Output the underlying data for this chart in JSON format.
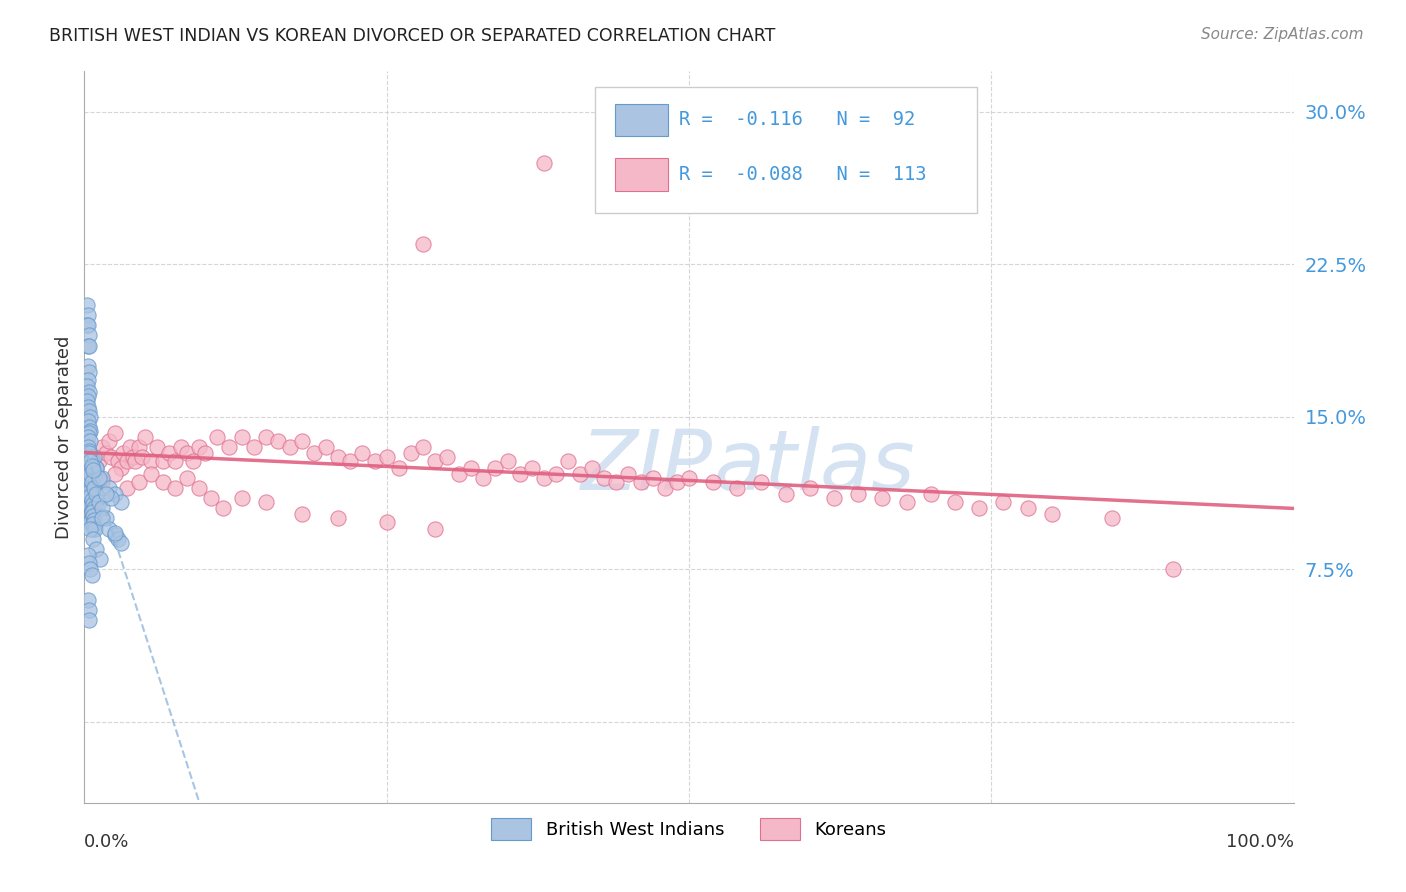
{
  "title": "BRITISH WEST INDIAN VS KOREAN DIVORCED OR SEPARATED CORRELATION CHART",
  "source": "Source: ZipAtlas.com",
  "ylabel": "Divorced or Separated",
  "yticks": [
    0.0,
    0.075,
    0.15,
    0.225,
    0.3
  ],
  "ytick_labels": [
    "",
    "7.5%",
    "15.0%",
    "22.5%",
    "30.0%"
  ],
  "xlim": [
    0.0,
    1.0
  ],
  "ylim": [
    -0.04,
    0.32
  ],
  "legend_r_bwi": "-0.116",
  "legend_n_bwi": "92",
  "legend_r_kor": "-0.088",
  "legend_n_kor": "113",
  "bwi_color": "#aac4e2",
  "bwi_edge_color": "#6699cc",
  "kor_color": "#f5b8c8",
  "kor_edge_color": "#e07090",
  "trend_bwi_color": "#99bbdd",
  "trend_kor_color": "#e06080",
  "watermark_color": "#d0dff0",
  "background_color": "#ffffff",
  "grid_color": "#cccccc",
  "right_axis_color": "#4499dd",
  "title_color": "#222222",
  "source_color": "#888888"
}
